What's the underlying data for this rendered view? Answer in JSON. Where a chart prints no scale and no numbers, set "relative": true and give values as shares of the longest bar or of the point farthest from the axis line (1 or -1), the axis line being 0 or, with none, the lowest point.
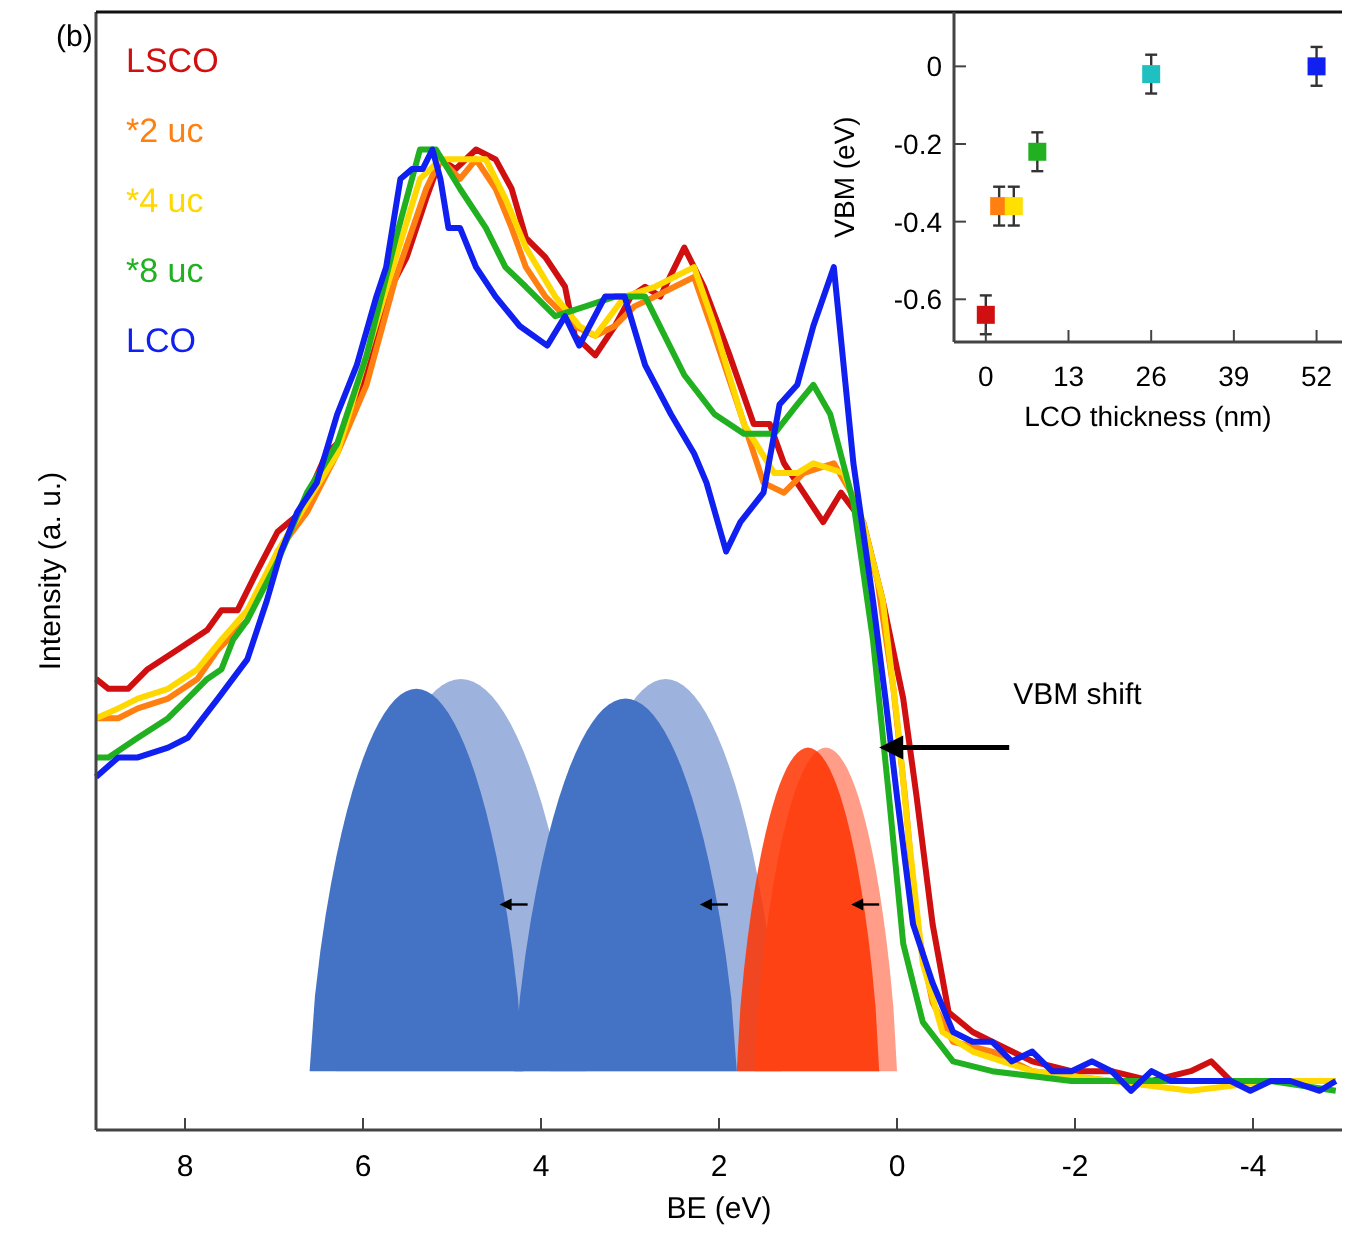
{
  "chart_data": [
    {
      "type": "line",
      "xlabel": "BE (eV)",
      "ylabel": "Intensity (a. u.)",
      "relative": true,
      "xlim": [
        9,
        -5
      ],
      "xticks": [
        8,
        6,
        4,
        2,
        0,
        -2,
        -4
      ],
      "legend": "top left",
      "line_style": "solid",
      "marker": "none",
      "annotations": [
        "(b)",
        {
          "text": "VBM shift",
          "x": 0.2,
          "y": 0.39
        }
      ],
      "series": [
        {
          "name": "LSCO",
          "color": "#d01010",
          "x": [
            9.0,
            8.86,
            8.64,
            8.42,
            8.08,
            7.75,
            7.59,
            7.41,
            7.19,
            6.96,
            6.7,
            6.41,
            6.29,
            6.18,
            5.96,
            5.74,
            5.51,
            5.29,
            5.13,
            4.96,
            4.73,
            4.51,
            4.33,
            4.17,
            3.95,
            3.73,
            3.62,
            3.39,
            3.17,
            2.99,
            2.83,
            2.66,
            2.39,
            2.17,
            1.88,
            1.61,
            1.43,
            1.27,
            1.05,
            0.83,
            0.63,
            0.38,
            0.16,
            -0.07,
            -0.22,
            -0.4,
            -0.58,
            -0.85,
            -1.07,
            -1.52,
            -1.96,
            -2.41,
            -2.86,
            -3.3,
            -3.53,
            -3.75,
            -4.2,
            -4.93
          ],
          "values": [
            0.46,
            0.45,
            0.45,
            0.47,
            0.49,
            0.51,
            0.53,
            0.53,
            0.57,
            0.61,
            0.63,
            0.69,
            0.7,
            0.72,
            0.77,
            0.85,
            0.89,
            0.95,
            0.99,
            0.98,
            1.0,
            0.99,
            0.96,
            0.91,
            0.89,
            0.86,
            0.81,
            0.79,
            0.82,
            0.85,
            0.86,
            0.85,
            0.9,
            0.86,
            0.79,
            0.72,
            0.72,
            0.68,
            0.65,
            0.62,
            0.65,
            0.62,
            0.54,
            0.44,
            0.34,
            0.21,
            0.12,
            0.1,
            0.09,
            0.07,
            0.06,
            0.06,
            0.05,
            0.06,
            0.07,
            0.05,
            0.05,
            0.05
          ]
        },
        {
          "name": "*2 uc",
          "color": "#ff8010",
          "x": [
            9.0,
            8.75,
            8.53,
            8.19,
            7.86,
            7.63,
            7.3,
            6.96,
            6.63,
            6.29,
            5.96,
            5.63,
            5.29,
            5.13,
            4.91,
            4.73,
            4.51,
            4.33,
            4.17,
            3.95,
            3.62,
            3.39,
            3.17,
            2.95,
            2.72,
            2.5,
            2.28,
            2.05,
            1.79,
            1.5,
            1.27,
            1.05,
            0.71,
            0.45,
            0.22,
            0.04,
            -0.09,
            -0.22,
            -0.4,
            -0.63,
            -1.07,
            -1.52,
            -2.41,
            -3.3
          ],
          "values": [
            0.42,
            0.42,
            0.43,
            0.44,
            0.46,
            0.49,
            0.52,
            0.59,
            0.63,
            0.69,
            0.76,
            0.87,
            0.96,
            0.99,
            0.97,
            0.99,
            0.96,
            0.92,
            0.88,
            0.85,
            0.82,
            0.81,
            0.82,
            0.84,
            0.85,
            0.86,
            0.87,
            0.81,
            0.74,
            0.66,
            0.65,
            0.67,
            0.68,
            0.64,
            0.56,
            0.45,
            0.34,
            0.21,
            0.13,
            0.09,
            0.08,
            0.06,
            0.05,
            0.05
          ]
        },
        {
          "name": "*4 uc",
          "color": "#ffd800",
          "x": [
            9.0,
            8.75,
            8.53,
            8.19,
            7.86,
            7.59,
            7.3,
            6.96,
            6.63,
            6.29,
            5.96,
            5.63,
            5.36,
            5.13,
            4.84,
            4.62,
            4.4,
            4.17,
            3.84,
            3.57,
            3.39,
            3.06,
            2.72,
            2.28,
            2.05,
            1.72,
            1.38,
            1.12,
            0.94,
            0.6,
            0.38,
            0.16,
            0,
            -0.13,
            -0.29,
            -0.51,
            -0.85,
            -1.52,
            -2.41,
            -3.3,
            -4.2,
            -4.93
          ],
          "values": [
            0.42,
            0.43,
            0.44,
            0.45,
            0.47,
            0.5,
            0.53,
            0.59,
            0.64,
            0.69,
            0.79,
            0.89,
            0.97,
            0.99,
            0.99,
            0.99,
            0.95,
            0.9,
            0.85,
            0.82,
            0.81,
            0.85,
            0.86,
            0.88,
            0.82,
            0.72,
            0.67,
            0.67,
            0.68,
            0.67,
            0.62,
            0.54,
            0.42,
            0.3,
            0.17,
            0.1,
            0.08,
            0.06,
            0.05,
            0.04,
            0.05,
            0.05
          ]
        },
        {
          "name": "*8 uc",
          "color": "#20b020",
          "x": [
            9.0,
            8.86,
            8.53,
            8.19,
            7.97,
            7.75,
            7.59,
            7.46,
            7.3,
            6.96,
            6.63,
            6.29,
            5.96,
            5.63,
            5.36,
            5.18,
            4.91,
            4.62,
            4.4,
            4.17,
            3.84,
            3.5,
            3.17,
            2.83,
            2.61,
            2.39,
            2.05,
            1.72,
            1.38,
            1.12,
            0.94,
            0.75,
            0.49,
            0.27,
            0.09,
            -0.07,
            -0.29,
            -0.63,
            -1.07,
            -1.96,
            -3.3,
            -4.2,
            -4.93
          ],
          "values": [
            0.38,
            0.38,
            0.4,
            0.42,
            0.44,
            0.46,
            0.47,
            0.5,
            0.52,
            0.58,
            0.65,
            0.7,
            0.79,
            0.91,
            1.0,
            1.0,
            0.96,
            0.92,
            0.88,
            0.86,
            0.83,
            0.84,
            0.85,
            0.85,
            0.81,
            0.77,
            0.73,
            0.71,
            0.71,
            0.74,
            0.76,
            0.73,
            0.64,
            0.5,
            0.34,
            0.19,
            0.11,
            0.07,
            0.06,
            0.05,
            0.05,
            0.05,
            0.04
          ]
        },
        {
          "name": "LCO",
          "color": "#1020f0",
          "x": [
            9.0,
            8.75,
            8.53,
            8.19,
            7.97,
            7.63,
            7.3,
            7.08,
            6.92,
            6.74,
            6.52,
            6.29,
            6.07,
            5.85,
            5.74,
            5.58,
            5.45,
            5.33,
            5.22,
            5.13,
            5.04,
            4.91,
            4.73,
            4.51,
            4.24,
            3.93,
            3.73,
            3.57,
            3.28,
            3.06,
            2.83,
            2.54,
            2.28,
            2.14,
            1.92,
            1.76,
            1.5,
            1.32,
            1.12,
            0.94,
            0.71,
            0.49,
            0.27,
            0.13,
            0,
            -0.18,
            -0.4,
            -0.63,
            -0.85,
            -1.07,
            -1.29,
            -1.52,
            -1.74,
            -1.96,
            -2.19,
            -2.41,
            -2.63,
            -2.86,
            -3.08,
            -3.3,
            -3.53,
            -3.75,
            -3.97,
            -4.2,
            -4.42,
            -4.75,
            -4.93
          ],
          "values": [
            0.36,
            0.38,
            0.38,
            0.39,
            0.4,
            0.44,
            0.48,
            0.54,
            0.59,
            0.63,
            0.66,
            0.73,
            0.78,
            0.85,
            0.88,
            0.97,
            0.98,
            0.98,
            1.0,
            0.97,
            0.92,
            0.92,
            0.88,
            0.85,
            0.82,
            0.8,
            0.83,
            0.8,
            0.85,
            0.85,
            0.78,
            0.73,
            0.69,
            0.66,
            0.59,
            0.62,
            0.65,
            0.74,
            0.76,
            0.82,
            0.88,
            0.68,
            0.54,
            0.44,
            0.34,
            0.21,
            0.15,
            0.1,
            0.09,
            0.09,
            0.07,
            0.08,
            0.06,
            0.06,
            0.07,
            0.06,
            0.04,
            0.06,
            0.05,
            0.05,
            0.05,
            0.05,
            0.04,
            0.05,
            0.05,
            0.04,
            0.05
          ]
        }
      ]
    },
    {
      "type": "scatter",
      "xlabel": "LCO thickness (nm)",
      "ylabel": "VBM (eV)",
      "xlim": [
        -5,
        56
      ],
      "ylim": [
        -0.71,
        0.14
      ],
      "xticks": [
        0,
        13,
        26,
        39,
        52
      ],
      "yticks": [
        0,
        -0.2,
        -0.4,
        -0.6
      ],
      "marker": "square",
      "series": [
        {
          "x": [
            0,
            2.1,
            4.4,
            8.1,
            26,
            52
          ],
          "values": [
            -0.64,
            -0.36,
            -0.36,
            -0.22,
            -0.02,
            0.0
          ],
          "errors": [
            0.05,
            0.05,
            0.05,
            0.05,
            0.05,
            0.05
          ],
          "colors": [
            "#d01010",
            "#ff8010",
            "#ffe000",
            "#20b020",
            "#20c0c0",
            "#1020f0"
          ]
        }
      ]
    }
  ]
}
